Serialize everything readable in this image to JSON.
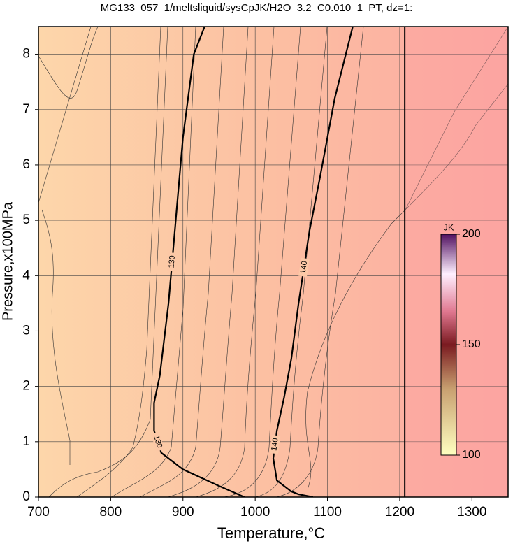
{
  "chart_data": {
    "type": "contour",
    "title": "MG133_057_1/meltsliquid/sysCpJK/H2O_3.2_C0.010_1_PT, dz=1:",
    "x_label": "Temperature,°C",
    "y_label": "Pressure,x100MPa",
    "xlim": [
      700,
      1350
    ],
    "xticks": [
      700,
      800,
      900,
      1000,
      1100,
      1200,
      1300
    ],
    "ylim": [
      0,
      8.5
    ],
    "yticks": [
      0,
      1,
      2,
      3,
      4,
      5,
      6,
      7,
      8
    ],
    "grid": true,
    "contours": [
      {
        "level": 130,
        "color": "#000000",
        "x": [
          985,
          950,
          900,
          870,
          860,
          860,
          868,
          880,
          890,
          900,
          915,
          930
        ],
        "y": [
          0,
          0.2,
          0.5,
          0.8,
          1.2,
          1.7,
          2.2,
          3.5,
          5,
          6.5,
          8,
          8.5
        ]
      },
      {
        "level": 140,
        "color": "#000000",
        "x": [
          1080,
          1060,
          1050,
          1030,
          1025,
          1030,
          1040,
          1050,
          1060,
          1075,
          1090,
          1110,
          1135
        ],
        "y": [
          0,
          0.05,
          0.1,
          0.3,
          0.7,
          1.2,
          1.8,
          2.5,
          3.5,
          4.8,
          5.8,
          7.2,
          8.5
        ]
      }
    ],
    "boundary_x": 1207,
    "colorbar": {
      "label": "JK",
      "ylim": [
        100,
        200
      ],
      "yticks": [
        100,
        150,
        200
      ]
    }
  }
}
